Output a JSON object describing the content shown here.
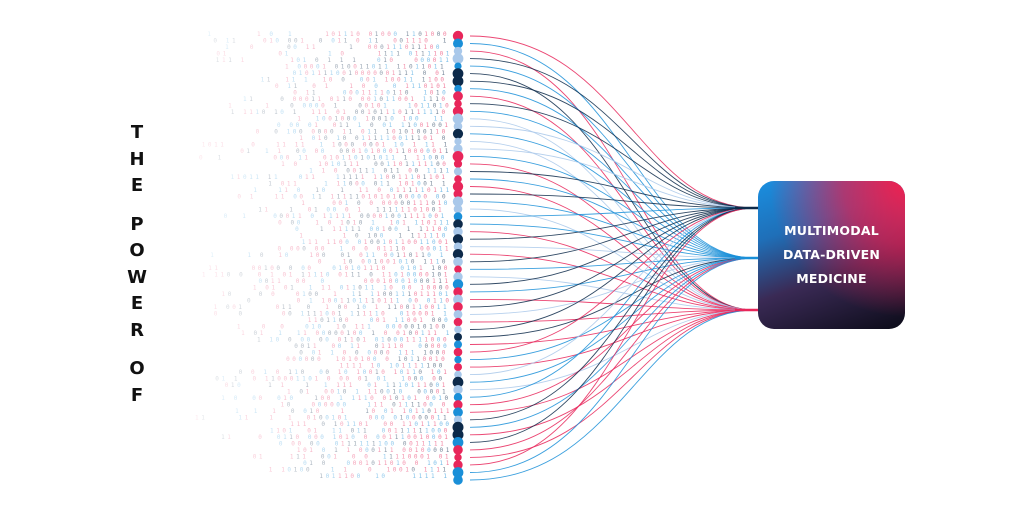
{
  "title_vertical": [
    "T",
    "H",
    "E",
    " ",
    "P",
    "O",
    "W",
    "E",
    "R",
    " ",
    "O",
    "F"
  ],
  "box": {
    "lines": [
      "MULTIMODAL",
      "DATA-DRIVEN",
      "MEDICINE"
    ]
  },
  "colors": {
    "navy": "#0d2a4a",
    "blue": "#1a8fd8",
    "pink": "#e8265a",
    "light_blue": "#a9c8ea",
    "text": "#111111"
  }
}
